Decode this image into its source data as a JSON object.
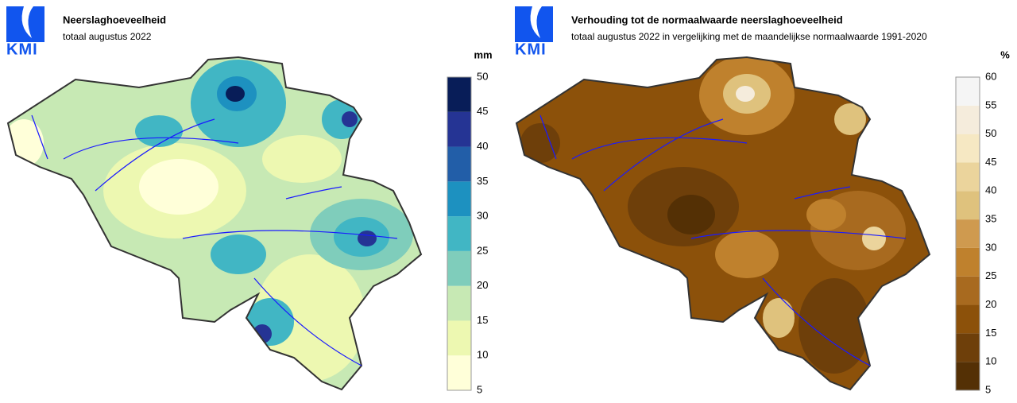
{
  "panels": [
    {
      "logo": "KMI",
      "title": "Neerslaghoeveelheid",
      "subtitle": "totaal augustus 2022",
      "legend": {
        "unit": "mm",
        "ticks": [
          5,
          10,
          15,
          20,
          25,
          30,
          35,
          40,
          45,
          50
        ],
        "colors": [
          "#ffffd9",
          "#edf8b1",
          "#c7e9b4",
          "#7fcdbb",
          "#41b6c4",
          "#1d91c0",
          "#225ea8",
          "#253494",
          "#081d58"
        ]
      }
    },
    {
      "logo": "KMI",
      "title": "Verhouding tot de normaalwaarde neerslaghoeveelheid",
      "subtitle": "totaal augustus 2022 in vergelijking met de maandelijkse normaalwaarde 1991-2020",
      "legend": {
        "unit": "%",
        "ticks": [
          5,
          10,
          15,
          20,
          25,
          30,
          35,
          40,
          45,
          50,
          55,
          60
        ],
        "colors": [
          "#543005",
          "#6e3f0a",
          "#8c510a",
          "#a86a1f",
          "#bf812d",
          "#cf9a4f",
          "#dfc27d",
          "#ebd49c",
          "#f6e8c3",
          "#f5ecdc",
          "#f5f5f5"
        ]
      }
    }
  ]
}
